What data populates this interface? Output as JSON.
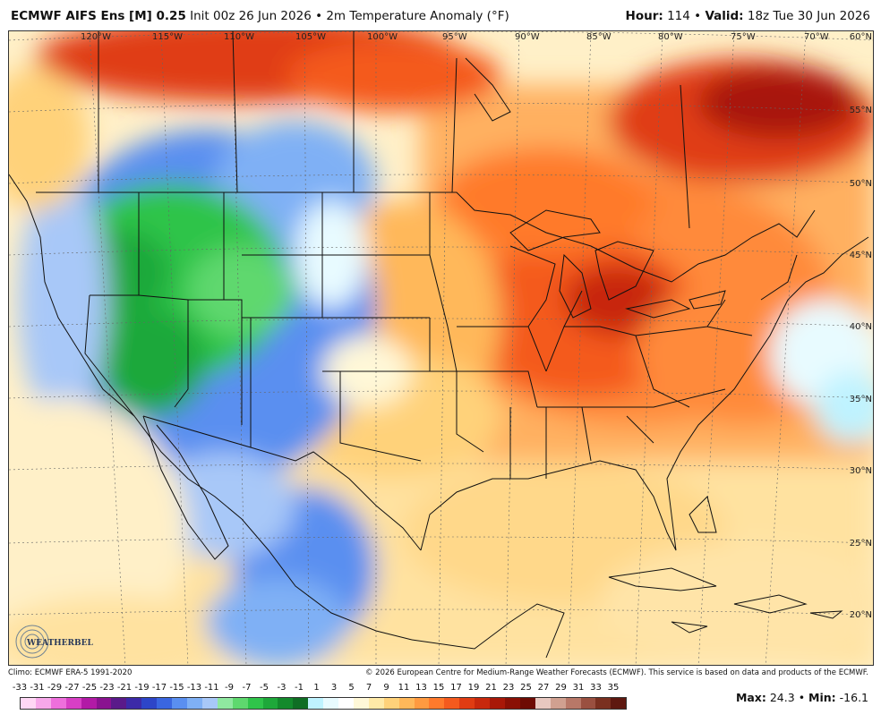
{
  "header": {
    "model": "ECMWF AIFS Ens [M] 0.25",
    "init": "Init 00z 26 Jun 2026",
    "sep": "•",
    "field": "2m Temperature Anomaly (°F)",
    "hour_label": "Hour:",
    "hour_value": "114",
    "valid_label": "Valid:",
    "valid_value": "18z Tue 30 Jun 2026"
  },
  "map": {
    "longitude_labels": [
      "120°W",
      "115°W",
      "110°W",
      "105°W",
      "100°W",
      "95°W",
      "90°W",
      "85°W",
      "80°W",
      "75°W",
      "70°W"
    ],
    "latitude_labels": [
      "60°N",
      "55°N",
      "50°N",
      "45°N",
      "40°N",
      "35°N",
      "30°N",
      "25°N",
      "20°N"
    ],
    "logo_text": "WEATHERBELL"
  },
  "footer": {
    "climo": "Climo: ECMWF ERA-5 1991-2020",
    "copyright": "© 2026 European Centre for Medium-Range Weather Forecasts (ECMWF). This service is based on data and products of the ECMWF."
  },
  "colorbar": {
    "labels": [
      "-33",
      "-31",
      "-29",
      "-27",
      "-25",
      "-23",
      "-21",
      "-19",
      "-17",
      "-15",
      "-13",
      "-11",
      "-9",
      "-7",
      "-5",
      "-3",
      "-1",
      "1",
      "3",
      "5",
      "7",
      "9",
      "11",
      "13",
      "15",
      "17",
      "19",
      "21",
      "23",
      "25",
      "27",
      "29",
      "31",
      "33",
      "35"
    ],
    "colors": [
      "#ffd7f5",
      "#f7a8ea",
      "#ee6fdc",
      "#d83fc5",
      "#b21aa6",
      "#8a1290",
      "#5a1a8a",
      "#3c2aa8",
      "#2d45c8",
      "#3a66e0",
      "#5a8ff0",
      "#7fb0f5",
      "#a8c8f8",
      "#8fe8a0",
      "#5ed86e",
      "#2fc44a",
      "#1ea83a",
      "#138a2c",
      "#0f6e24",
      "#bff3ff",
      "#e8fbff",
      "#ffffff",
      "#fff8d8",
      "#ffeaa8",
      "#ffd27a",
      "#ffb85a",
      "#ff9a40",
      "#ff7a2c",
      "#f45a1e",
      "#e03c12",
      "#c8280c",
      "#a81808",
      "#8a1005",
      "#6e0c04",
      "#e8c8c0",
      "#d0a090",
      "#b87868",
      "#9a5040",
      "#7a3020",
      "#5e1810"
    ]
  },
  "stats": {
    "max_label": "Max:",
    "max_value": "24.3",
    "sep": "•",
    "min_label": "Min:",
    "min_value": "-16.1"
  }
}
